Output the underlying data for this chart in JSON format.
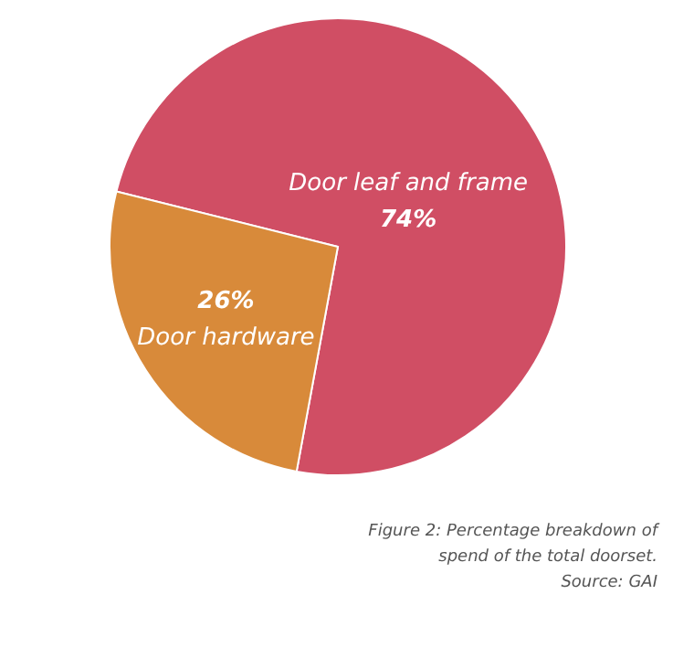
{
  "chart_data": {
    "type": "pie",
    "categories": [
      "Door leaf and frame",
      "Door hardware"
    ],
    "values": [
      74,
      26
    ],
    "colors": [
      "#d04e64",
      "#d88a3a"
    ],
    "value_labels": [
      "74%",
      "26%"
    ],
    "legend": false,
    "annotations": [
      "Figure 2: Percentage breakdown of",
      "spend of the total doorset.",
      "Source: GAI"
    ]
  }
}
